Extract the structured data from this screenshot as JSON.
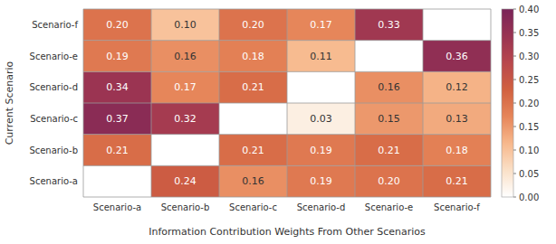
{
  "chart_data": {
    "type": "heatmap",
    "x_label": "Information Contribution Weights From Other Scenarios",
    "y_label": "Current Scenario",
    "x_categories": [
      "Scenario-a",
      "Scenario-b",
      "Scenario-c",
      "Scenario-d",
      "Scenario-e",
      "Scenario-f"
    ],
    "y_categories": [
      "Scenario-a",
      "Scenario-b",
      "Scenario-c",
      "Scenario-d",
      "Scenario-e",
      "Scenario-f"
    ],
    "values": [
      [
        null,
        0.24,
        0.16,
        0.19,
        0.2,
        0.21
      ],
      [
        0.21,
        null,
        0.21,
        0.19,
        0.21,
        0.18
      ],
      [
        0.37,
        0.32,
        null,
        0.03,
        0.15,
        0.13
      ],
      [
        0.34,
        0.17,
        0.21,
        null,
        0.16,
        0.12
      ],
      [
        0.19,
        0.16,
        0.18,
        0.11,
        null,
        0.36
      ],
      [
        0.2,
        0.1,
        0.2,
        0.17,
        0.33,
        null
      ]
    ],
    "value_labels": [
      [
        null,
        "0.24",
        "0.16",
        "0.19",
        "0.20",
        "0.21"
      ],
      [
        "0.21",
        null,
        "0.21",
        "0.19",
        "0.21",
        "0.18"
      ],
      [
        "0.37",
        "0.32",
        null,
        "0.03",
        "0.15",
        "0.13"
      ],
      [
        "0.34",
        "0.17",
        "0.21",
        null,
        "0.16",
        "0.12"
      ],
      [
        "0.19",
        "0.16",
        "0.18",
        "0.11",
        null,
        "0.36"
      ],
      [
        "0.20",
        "0.10",
        "0.20",
        "0.17",
        "0.33",
        null
      ]
    ],
    "data_labels": true,
    "colorbar_range": [
      0.0,
      0.4
    ],
    "colorbar_ticks": [
      {
        "value": 0.0,
        "label": "0.00"
      },
      {
        "value": 0.05,
        "label": "0.05"
      },
      {
        "value": 0.1,
        "label": "0.10"
      },
      {
        "value": 0.15,
        "label": "0.15"
      },
      {
        "value": 0.2,
        "label": "0.20"
      },
      {
        "value": 0.25,
        "label": "0.25"
      },
      {
        "value": 0.3,
        "label": "0.30"
      },
      {
        "value": 0.35,
        "label": "0.35"
      },
      {
        "value": 0.4,
        "label": "0.40"
      }
    ],
    "colors": [
      "#ffffff",
      "#fae0c7",
      "#f7b88c",
      "#e68559",
      "#d16140",
      "#b8474d",
      "#993352",
      "#7a2459"
    ]
  }
}
